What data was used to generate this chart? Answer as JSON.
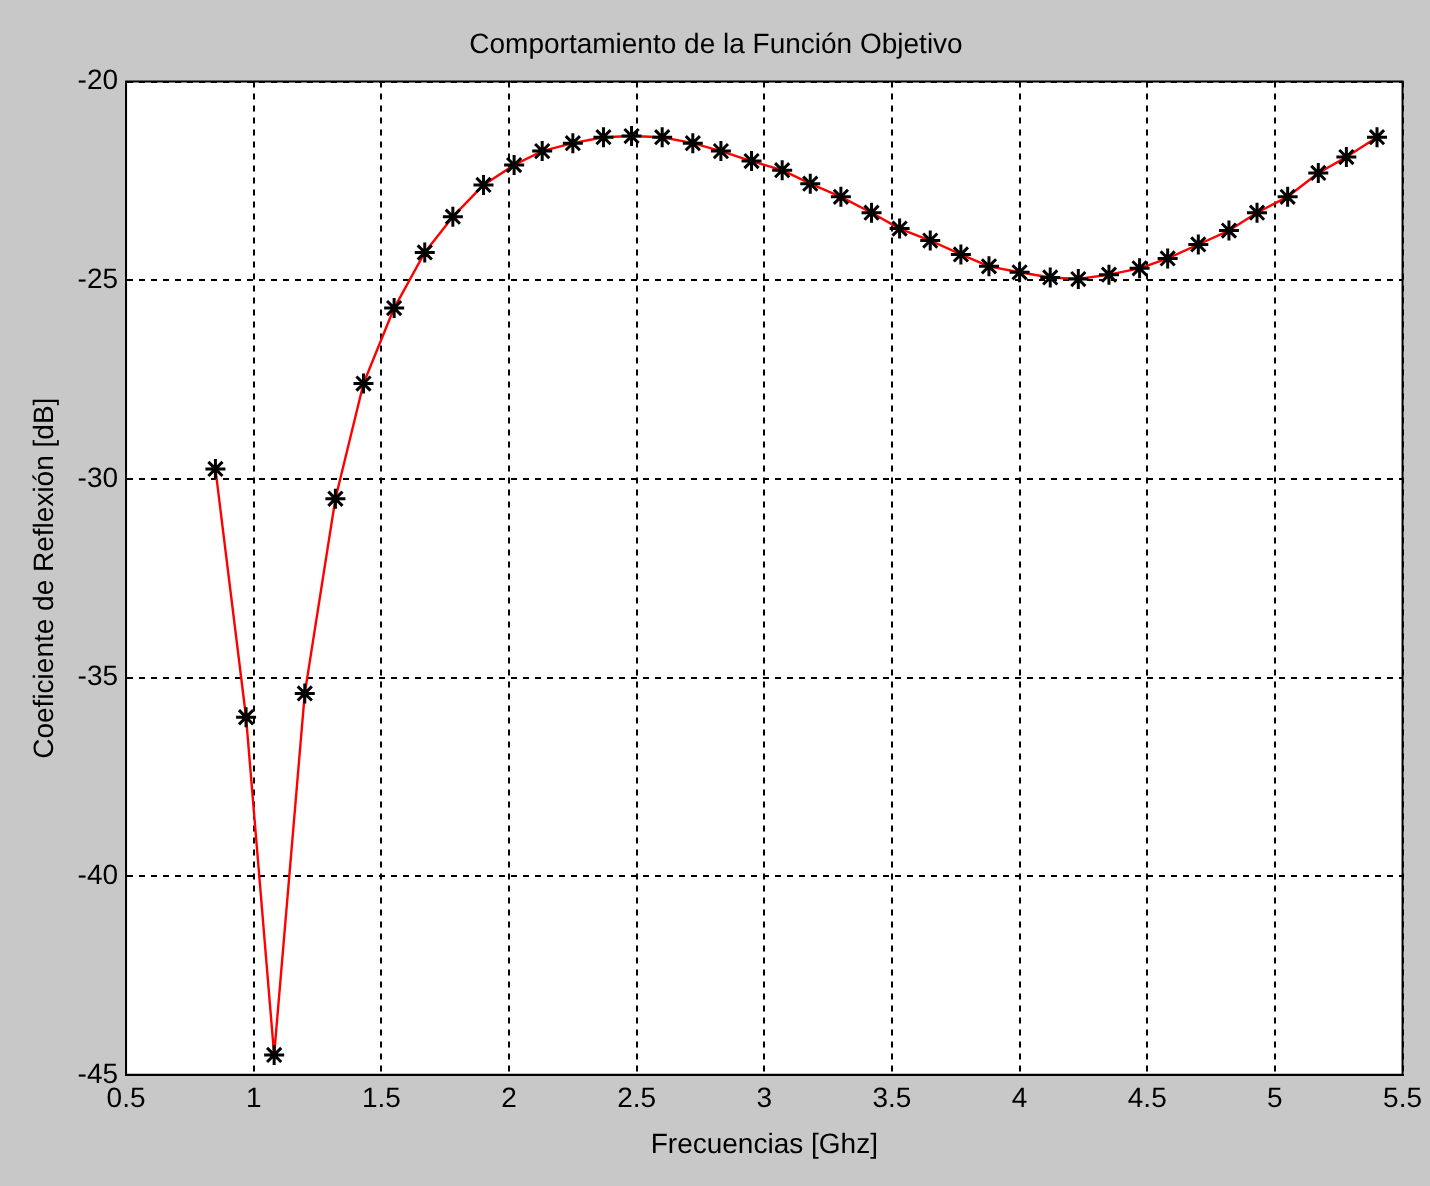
{
  "chart_data": {
    "type": "line",
    "title": "Comportamiento de la Función Objetivo",
    "xlabel": "Frecuencias [Ghz]",
    "ylabel": "Coeficiente de Reflexión [dB]",
    "x": [
      0.85,
      0.97,
      1.08,
      1.2,
      1.32,
      1.43,
      1.55,
      1.67,
      1.78,
      1.9,
      2.02,
      2.13,
      2.25,
      2.37,
      2.48,
      2.6,
      2.72,
      2.83,
      2.95,
      3.07,
      3.18,
      3.3,
      3.42,
      3.53,
      3.65,
      3.77,
      3.88,
      4.0,
      4.12,
      4.23,
      4.35,
      4.47,
      4.58,
      4.7,
      4.82,
      4.93,
      5.05,
      5.17,
      5.28,
      5.4
    ],
    "series": [
      {
        "color": "#ff0000",
        "values": [
          -29.75,
          -36.0,
          -44.5,
          -35.4,
          -30.5,
          -27.6,
          -25.7,
          -24.3,
          -23.4,
          -22.6,
          -22.1,
          -21.75,
          -21.55,
          -21.4,
          -21.37,
          -21.4,
          -21.55,
          -21.75,
          -22.0,
          -22.23,
          -22.57,
          -22.9,
          -23.3,
          -23.7,
          -24.0,
          -24.35,
          -24.65,
          -24.8,
          -24.93,
          -24.97,
          -24.86,
          -24.7,
          -24.45,
          -24.1,
          -23.75,
          -23.3,
          -22.9,
          -22.3,
          -21.9,
          -21.4
        ]
      }
    ],
    "xlim": [
      0.5,
      5.5
    ],
    "xticks": [
      0.5,
      1,
      1.5,
      2,
      2.5,
      3,
      3.5,
      4,
      4.5,
      5,
      5.5
    ],
    "ylim": [
      -45,
      -20
    ],
    "yticks": [
      -45,
      -40,
      -35,
      -30,
      -25,
      -20
    ],
    "grid": true,
    "marker": "cross",
    "line_style": "solid",
    "legend": false
  }
}
